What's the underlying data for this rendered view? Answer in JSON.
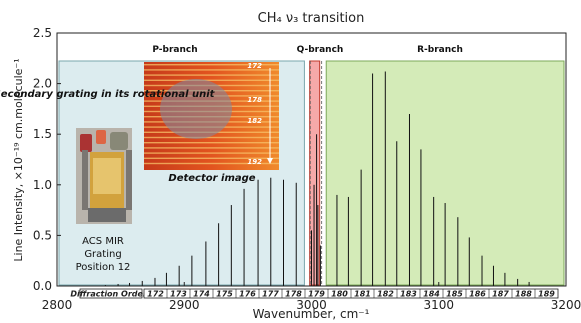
{
  "chart_data": {
    "type": "stick",
    "title": "CH₄ ν₃ transition",
    "xlabel": "Wavenumber, cm⁻¹",
    "ylabel": "Line Intensity, ×10⁻¹⁹ cm.molecule⁻¹",
    "xlim": [
      2800,
      3200
    ],
    "ylim": [
      0,
      2.5
    ],
    "x_ticks": [
      "2800",
      "2900",
      "3000",
      "3100",
      "3200"
    ],
    "y_ticks": [
      "0.0",
      "0.5",
      "1.0",
      "1.5",
      "2.0",
      "2.5"
    ],
    "regions": [
      {
        "name": "P-branch",
        "x_range": [
          2800,
          2996
        ],
        "color": "#dcecef"
      },
      {
        "name": "Q-branch",
        "x_range": [
          2997,
          3008
        ],
        "color": "#f5a9a9"
      },
      {
        "name": "R-branch",
        "x_range": [
          3010,
          3200
        ],
        "color": "#d4ebb8"
      }
    ],
    "diffraction_orders_label": "Diffraction Orders",
    "diffraction_orders": [
      "172",
      "173",
      "174",
      "175",
      "176",
      "177",
      "178",
      "179",
      "180",
      "181",
      "182",
      "183",
      "184",
      "185",
      "186",
      "187",
      "188",
      "189"
    ],
    "peaks": {
      "x": [
        2838,
        2848,
        2857,
        2867,
        2877,
        2886,
        2896,
        2906,
        2917,
        2927,
        2937,
        2947,
        2958,
        2968,
        2978,
        2988,
        3000,
        3002,
        3004,
        3005,
        3007,
        3020,
        3029,
        3039,
        3048,
        3058,
        3067,
        3077,
        3086,
        3096,
        3105,
        3115,
        3124,
        3134,
        3143,
        3152,
        3162,
        3171
      ],
      "y": [
        0.01,
        0.02,
        0.03,
        0.05,
        0.08,
        0.13,
        0.2,
        0.3,
        0.44,
        0.62,
        0.8,
        0.96,
        1.05,
        1.07,
        1.05,
        1.02,
        0.55,
        1.0,
        1.5,
        0.8,
        0.4,
        0.9,
        0.88,
        1.15,
        2.1,
        2.12,
        1.43,
        1.7,
        1.35,
        0.88,
        0.82,
        0.68,
        0.48,
        0.3,
        0.2,
        0.13,
        0.07,
        0.04
      ]
    },
    "annotations": {
      "secondary_grating": "Secondary grating in its rotational unit",
      "detector_image": "Detector image",
      "detector_orders": [
        "172",
        "178",
        "182",
        "192"
      ],
      "photo_caption": [
        "ACS MIR",
        "Grating",
        "Position 12"
      ]
    }
  }
}
